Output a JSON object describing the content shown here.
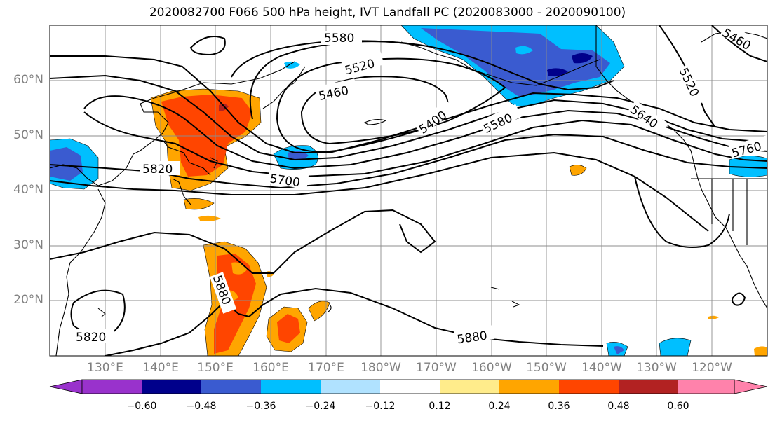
{
  "title": "2020082700 F066 500 hPa height, IVT Landfall PC (2020083000 - 2020090100)",
  "axes": {
    "lat_labels": [
      "60°N",
      "50°N",
      "40°N",
      "30°N",
      "20°N"
    ],
    "lon_labels": [
      "130°E",
      "140°E",
      "150°E",
      "160°E",
      "170°E",
      "180°W",
      "170°W",
      "160°W",
      "150°W",
      "140°W",
      "130°W",
      "120°W"
    ],
    "lat_range": [
      10,
      70
    ],
    "lon_range": [
      120,
      250
    ],
    "grid": true
  },
  "contour_labels": [
    "5580",
    "5520",
    "5460",
    "5400",
    "5580",
    "5460",
    "5520",
    "5640",
    "5760",
    "5820",
    "5700",
    "5880",
    "5880",
    "5820"
  ],
  "colorbar": {
    "ticks": [
      "−0.60",
      "−0.48",
      "−0.36",
      "−0.24",
      "−0.12",
      "0.12",
      "0.24",
      "0.36",
      "0.48",
      "0.60"
    ],
    "colors": [
      "#9932cc",
      "#00008b",
      "#3a5bd0",
      "#00bfff",
      "#b0e2ff",
      "#ffffff",
      "#ffec8b",
      "#ffa500",
      "#ff4500",
      "#b22222",
      "#ff82ab"
    ],
    "orientation": "horizontal",
    "extend": "both"
  }
}
